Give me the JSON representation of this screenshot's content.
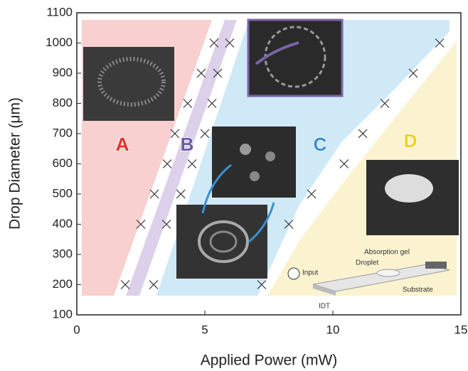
{
  "chart_data": {
    "type": "scatter",
    "xlabel": "Applied Power (mW)",
    "ylabel": "Drop Diameter (μm)",
    "xlim": [
      0,
      15
    ],
    "ylim": [
      100,
      1100
    ],
    "xticks": [
      0,
      5,
      10,
      15
    ],
    "yticks": [
      100,
      200,
      300,
      400,
      500,
      600,
      700,
      800,
      900,
      1000,
      1100
    ],
    "marker_color": "#333333",
    "x": [
      1.89,
      3.0,
      2.5,
      3.5,
      3.03,
      4.06,
      3.53,
      4.5,
      3.83,
      5.0,
      4.33,
      5.28,
      4.86,
      5.5,
      5.36,
      5.97,
      7.22,
      8.28,
      9.17,
      10.44,
      11.17,
      12.03,
      13.14,
      14.17
    ],
    "values": [
      200,
      200,
      400,
      400,
      500,
      500,
      600,
      600,
      700,
      700,
      800,
      800,
      900,
      900,
      1000,
      1000,
      200,
      400,
      500,
      600,
      700,
      800,
      900,
      1000
    ],
    "region_labels": [
      {
        "text": "A",
        "color": "#e0302a"
      },
      {
        "text": "B",
        "color": "#6a5aa8"
      },
      {
        "text": "C",
        "color": "#3a8fd0"
      },
      {
        "text": "D",
        "color": "#f0d020"
      }
    ],
    "inset_labels": [
      "Input",
      "Droplet",
      "Absorption gel",
      "Substrate",
      "IDT"
    ]
  }
}
